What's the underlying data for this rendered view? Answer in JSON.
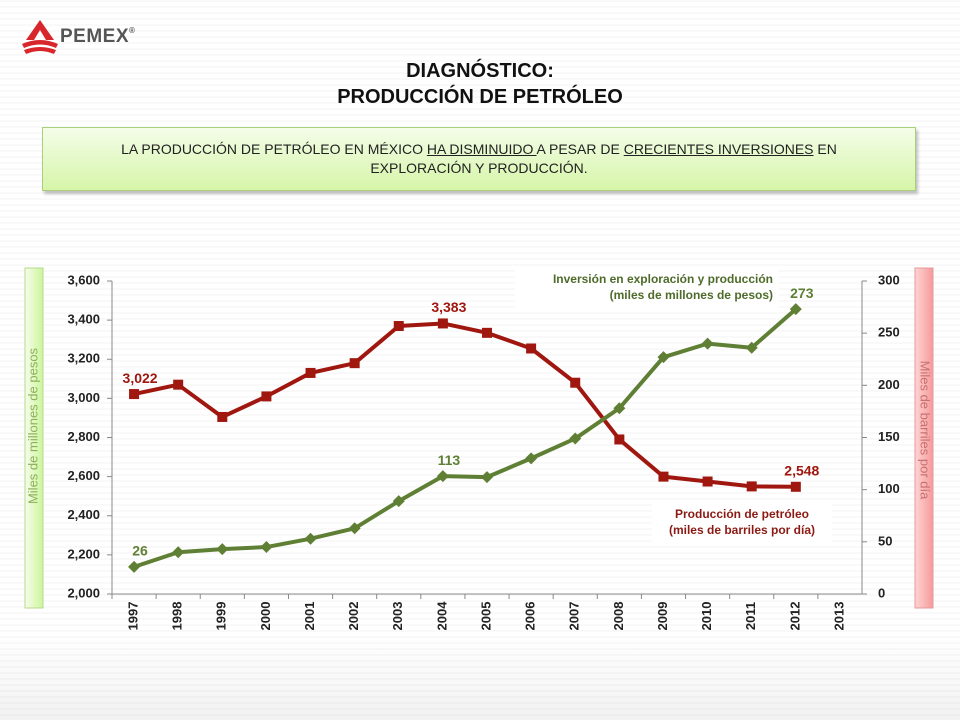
{
  "header": {
    "logo": {
      "text": "PEMEX",
      "mark": "®"
    },
    "title": [
      "DIAGNÓSTICO:",
      "PRODUCCIÓN DE PETRÓLEO"
    ]
  },
  "banner": {
    "parts": [
      {
        "text": "LA PRODUCCIÓN DE PETRÓLEO EN MÉXICO ",
        "underline": false
      },
      {
        "text": "HA DISMINUIDO ",
        "underline": true
      },
      {
        "text": "A PESAR DE ",
        "underline": false
      },
      {
        "text": "CRECIENTES INVERSIONES",
        "underline": true
      },
      {
        "text": " EN EXPLORACIÓN Y PRODUCCIÓN.",
        "underline": false
      }
    ]
  },
  "chart_data": {
    "type": "line",
    "y_label": "Miles de millones de pesos",
    "y2_label": "Miles de barriles por día",
    "categories": [
      "1997",
      "1998",
      "1999",
      "2000",
      "2001",
      "2002",
      "2003",
      "2004",
      "2005",
      "2006",
      "2007",
      "2008",
      "2009",
      "2010",
      "2011",
      "2012",
      "2013"
    ],
    "ylim": [
      2000,
      3600
    ],
    "yticks": [
      {
        "value": 2000,
        "label": "2,000"
      },
      {
        "value": 2200,
        "label": "2,200"
      },
      {
        "value": 2400,
        "label": "2,400"
      },
      {
        "value": 2600,
        "label": "2,600"
      },
      {
        "value": 2800,
        "label": "2,800"
      },
      {
        "value": 3000,
        "label": "3,000"
      },
      {
        "value": 3200,
        "label": "3,200"
      },
      {
        "value": 3400,
        "label": "3,400"
      },
      {
        "value": 3600,
        "label": "3,600"
      }
    ],
    "y2lim": [
      0,
      300
    ],
    "y2ticks": [
      0,
      50,
      100,
      150,
      200,
      250,
      300
    ],
    "grid": false,
    "series": [
      {
        "name": "Producción de petróleo",
        "unit": "(miles de barriles por día)",
        "color": "#a0170f",
        "marker": "square",
        "axis": "y",
        "values": [
          3022,
          3070,
          2905,
          3010,
          3130,
          3180,
          3370,
          3383,
          3335,
          3255,
          3080,
          2790,
          2600,
          2575,
          2550,
          2548,
          null
        ],
        "value_labels": [
          "3,022",
          null,
          null,
          null,
          null,
          null,
          null,
          "3,383",
          null,
          null,
          null,
          null,
          null,
          null,
          null,
          "2,548",
          null
        ]
      },
      {
        "name": "Inversión en exploración y producción",
        "unit": "(miles de millones de pesos)",
        "color": "#5f7f35",
        "marker": "diamond",
        "axis": "y2",
        "values": [
          26,
          40,
          43,
          45,
          53,
          63,
          89,
          113,
          112,
          130,
          149,
          178,
          227,
          240,
          236,
          273,
          null
        ],
        "value_labels": [
          "26",
          null,
          null,
          null,
          null,
          null,
          null,
          "113",
          null,
          null,
          null,
          null,
          null,
          null,
          null,
          "273",
          null
        ]
      }
    ]
  }
}
